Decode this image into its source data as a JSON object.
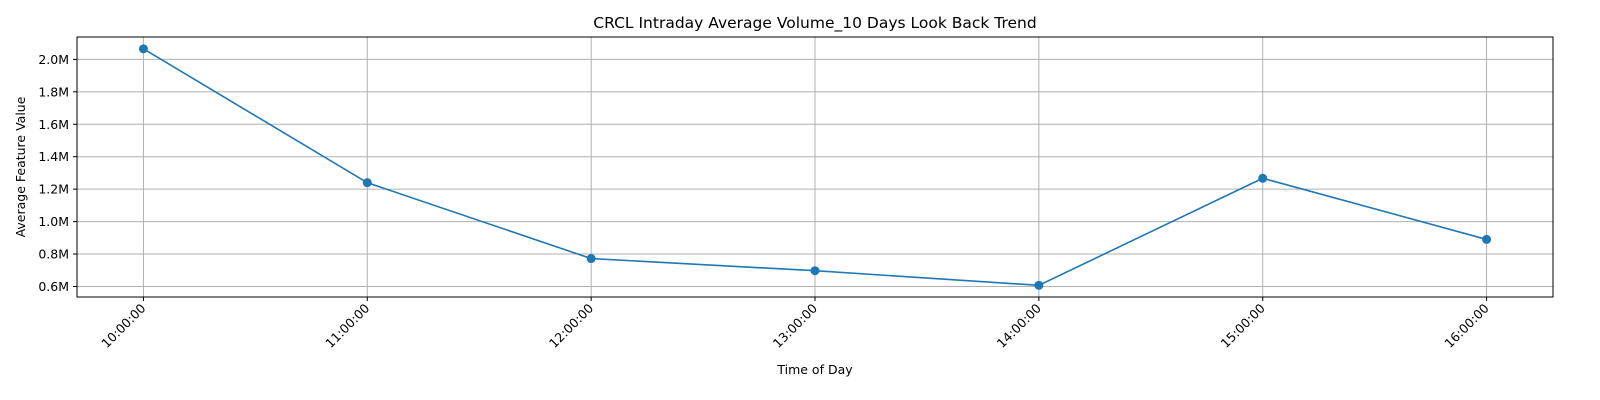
{
  "chart_data": {
    "type": "line",
    "title": "CRCL Intraday Average Volume_10 Days Look Back Trend",
    "xlabel": "Time of Day",
    "ylabel": "Average Feature Value",
    "categories": [
      "10:00:00",
      "11:00:00",
      "12:00:00",
      "13:00:00",
      "14:00:00",
      "15:00:00",
      "16:00:00"
    ],
    "series": [
      {
        "values": [
          2065000,
          1240000,
          772000,
          697000,
          607000,
          1267000,
          890000
        ],
        "color": "#1f77b4",
        "marker": "circle"
      }
    ],
    "yticks": [
      600000,
      800000,
      1000000,
      1200000,
      1400000,
      1600000,
      1800000,
      2000000
    ],
    "ytick_labels": [
      "0.6M",
      "0.8M",
      "1.0M",
      "1.2M",
      "1.4M",
      "1.6M",
      "1.8M",
      "2.0M"
    ],
    "ylim": [
      535000,
      2138000
    ],
    "grid": true,
    "xtick_rotation": 45
  }
}
